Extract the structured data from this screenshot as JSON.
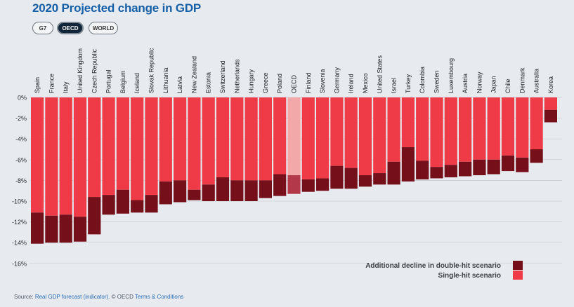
{
  "title": "2020 Projected change in GDP",
  "toggle": {
    "options": [
      "G7",
      "OECD",
      "WORLD"
    ],
    "selected": "OECD"
  },
  "source": {
    "prefix": "Source:",
    "link1": "Real GDP forecast (indicator).",
    "middle": "© OECD",
    "link2": "Terms & Conditions"
  },
  "colors": {
    "single_hit": "#ee3b47",
    "double_hit": "#750f1a",
    "highlight_single": "#f2a8a8",
    "highlight_double": "#b3394a"
  },
  "chart_data": {
    "type": "bar",
    "stacked": true,
    "categories": [
      "Spain",
      "France",
      "Italy",
      "United Kingdom",
      "Czech Republic",
      "Portugal",
      "Belgium",
      "Iceland",
      "Slovak Republic",
      "Lithuania",
      "Latvia",
      "New Zealand",
      "Estonia",
      "Switzerland",
      "Netherlands",
      "Hungary",
      "Greece",
      "Poland",
      "OECD",
      "Finland",
      "Slovenia",
      "Germany",
      "Ireland",
      "Mexico",
      "United States",
      "Israel",
      "Turkey",
      "Colombia",
      "Sweden",
      "Luxembourg",
      "Austria",
      "Norway",
      "Japan",
      "Chile",
      "Denmark",
      "Australia",
      "Korea"
    ],
    "highlight": "OECD",
    "series": [
      {
        "name": "Single-hit scenario",
        "values": [
          -11.1,
          -11.4,
          -11.3,
          -11.5,
          -9.6,
          -9.4,
          -8.9,
          -9.9,
          -9.4,
          -8.1,
          -8.0,
          -8.9,
          -8.4,
          -7.7,
          -8.0,
          -8.0,
          -8.0,
          -7.4,
          -7.5,
          -7.9,
          -7.8,
          -6.6,
          -6.8,
          -7.5,
          -7.3,
          -6.2,
          -4.8,
          -6.1,
          -6.7,
          -6.5,
          -6.2,
          -6.0,
          -6.0,
          -5.6,
          -5.8,
          -5.0,
          -1.2
        ]
      },
      {
        "name": "Additional decline in double-hit scenario",
        "values": [
          -3.0,
          -2.6,
          -2.7,
          -2.4,
          -3.6,
          -1.9,
          -2.3,
          -1.2,
          -1.7,
          -2.2,
          -2.1,
          -1.0,
          -1.6,
          -2.3,
          -2.0,
          -2.0,
          -1.7,
          -2.1,
          -1.8,
          -1.2,
          -1.2,
          -2.2,
          -2.0,
          -1.1,
          -1.1,
          -2.2,
          -3.3,
          -1.8,
          -1.1,
          -1.2,
          -1.4,
          -1.5,
          -1.4,
          -1.5,
          -1.4,
          -1.3,
          -1.2
        ]
      }
    ],
    "yticks": [
      "0%",
      "-2%",
      "-4%",
      "-6%",
      "-8%",
      "-10%",
      "-12%",
      "-14%",
      "-16%"
    ],
    "ylim": [
      -16,
      0
    ],
    "legend_position": "bottom-right"
  }
}
